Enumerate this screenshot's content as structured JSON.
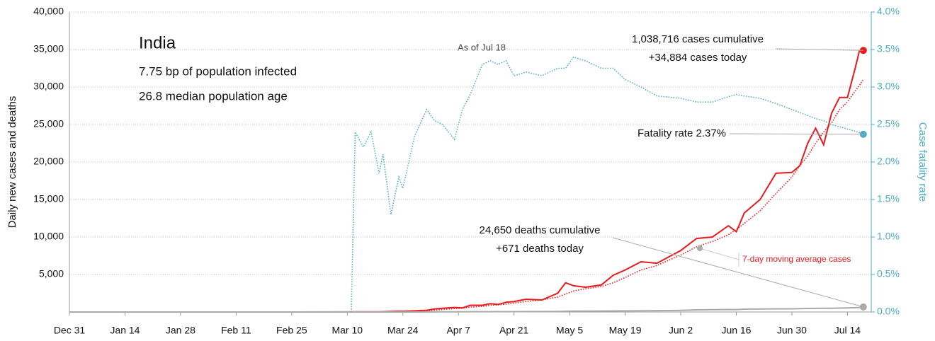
{
  "chart_data": {
    "type": "line",
    "title": "India",
    "subtitle": [
      "7.75 bp of population infected",
      "26.8 median population age"
    ],
    "y_label": "Daily new cases and deaths",
    "y2_label": "Case fatality rate",
    "annotations": {
      "as_of": "As of Jul 18",
      "cases_cumulative": "1,038,716 cases cumulative",
      "cases_today": "+34,884 cases today",
      "fatality": "Fatality rate 2.37%",
      "deaths_cumulative": "24,650 deaths cumulative",
      "deaths_today": "+671 deaths today"
    },
    "x": [
      "Dec 31",
      "Jan 14",
      "Jan 28",
      "Feb 11",
      "Feb 25",
      "Mar 10",
      "Mar 11",
      "Mar 12",
      "Mar 14",
      "Mar 16",
      "Mar 18",
      "Mar 19",
      "Mar 21",
      "Mar 23",
      "Mar 24",
      "Mar 27",
      "Mar 30",
      "Apr 1",
      "Apr 3",
      "Apr 6",
      "Apr 8",
      "Apr 10",
      "Apr 13",
      "Apr 15",
      "Apr 17",
      "Apr 19",
      "Apr 21",
      "Apr 24",
      "Apr 28",
      "May 2",
      "May 4",
      "May 6",
      "May 9",
      "May 13",
      "May 16",
      "May 19",
      "May 23",
      "May 27",
      "Jun 2",
      "Jun 6",
      "Jun 10",
      "Jun 14",
      "Jun 16",
      "Jun 18",
      "Jun 22",
      "Jun 26",
      "Jun 30",
      "Jul 2",
      "Jul 4",
      "Jul 6",
      "Jul 8",
      "Jul 10",
      "Jul 12",
      "Jul 14",
      "Jul 16",
      "Jul 17",
      "Jul 18"
    ],
    "xlim": [
      "Dec 31",
      "Jul 20"
    ],
    "xticks": [
      "Dec 31",
      "Jan 14",
      "Jan 28",
      "Feb 11",
      "Feb 25",
      "Mar 10",
      "Mar 24",
      "Apr 7",
      "Apr 21",
      "May 5",
      "May 19",
      "Jun 2",
      "Jun 16",
      "Jun 30",
      "Jul 14"
    ],
    "ylim": [
      0,
      40000
    ],
    "yticks": [
      {
        "value": 5000,
        "label": "5,000"
      },
      {
        "value": 10000,
        "label": "10,000"
      },
      {
        "value": 15000,
        "label": "15,000"
      },
      {
        "value": 20000,
        "label": "20,000"
      },
      {
        "value": 25000,
        "label": "25,000"
      },
      {
        "value": 30000,
        "label": "30,000"
      },
      {
        "value": 35000,
        "label": "35,000"
      },
      {
        "value": 40000,
        "label": "40,000"
      }
    ],
    "y2lim": [
      0,
      4
    ],
    "y2ticks": [
      {
        "value": 0,
        "label": "0.0%"
      },
      {
        "value": 0.5,
        "label": "0.5%"
      },
      {
        "value": 1,
        "label": "1.0%"
      },
      {
        "value": 1.5,
        "label": "1.5%"
      },
      {
        "value": 2,
        "label": "2.0%"
      },
      {
        "value": 2.5,
        "label": "2.5%"
      },
      {
        "value": 3,
        "label": "3.0%"
      },
      {
        "value": 3.5,
        "label": "3.5%"
      },
      {
        "value": 4,
        "label": "4.0%"
      }
    ],
    "grid": true,
    "series": [
      {
        "color": "#e8191c",
        "style": "solid",
        "values": [
          0,
          0,
          0,
          0,
          0,
          5,
          10,
          15,
          20,
          20,
          30,
          40,
          80,
          100,
          90,
          150,
          230,
          400,
          500,
          600,
          550,
          900,
          900,
          1100,
          1000,
          1300,
          1400,
          1700,
          1600,
          2500,
          3900,
          3500,
          3300,
          3600,
          4900,
          5600,
          6700,
          6500,
          8200,
          9800,
          10000,
          11500,
          10700,
          13200,
          15000,
          18500,
          18600,
          19500,
          22500,
          24500,
          22300,
          26500,
          28600,
          28600,
          32600,
          34800,
          34884
        ]
      },
      {
        "name": "7-day moving average cases",
        "color": "#e8191c",
        "style": "dotted",
        "values": [
          0,
          0,
          0,
          0,
          0,
          3,
          5,
          8,
          12,
          15,
          20,
          25,
          40,
          60,
          70,
          100,
          160,
          250,
          330,
          450,
          500,
          650,
          750,
          900,
          950,
          1050,
          1200,
          1400,
          1600,
          2000,
          2400,
          2800,
          3100,
          3400,
          3900,
          4600,
          5600,
          6200,
          7600,
          8700,
          9400,
          10300,
          11000,
          11800,
          13500,
          15800,
          18000,
          19500,
          20800,
          22500,
          24000,
          25200,
          27000,
          28000,
          29500,
          30200,
          31000
        ]
      },
      {
        "color": "#aaaaaa",
        "style": "solid",
        "values": [
          0,
          0,
          0,
          0,
          0,
          0,
          0,
          0,
          0,
          0,
          0,
          0,
          1,
          2,
          2,
          4,
          6,
          10,
          15,
          25,
          30,
          35,
          40,
          40,
          45,
          40,
          50,
          55,
          60,
          80,
          100,
          120,
          110,
          130,
          140,
          150,
          160,
          175,
          220,
          280,
          300,
          330,
          320,
          380,
          400,
          420,
          420,
          440,
          470,
          480,
          490,
          500,
          520,
          550,
          580,
          600,
          671
        ]
      },
      {
        "color": "#4bacc6",
        "style": "dotted",
        "axis": "y2",
        "values": [
          null,
          null,
          null,
          null,
          null,
          null,
          0,
          2.4,
          2.2,
          2.4,
          1.85,
          2.1,
          1.3,
          1.8,
          1.65,
          2.35,
          2.7,
          2.55,
          2.5,
          2.3,
          2.7,
          2.9,
          3.3,
          3.35,
          3.3,
          3.35,
          3.15,
          3.2,
          3.15,
          3.25,
          3.25,
          3.4,
          3.35,
          3.25,
          3.25,
          3.1,
          3.0,
          2.88,
          2.85,
          2.8,
          2.8,
          2.87,
          2.9,
          2.88,
          2.85,
          2.78,
          2.7,
          2.66,
          2.62,
          2.58,
          2.55,
          2.5,
          2.47,
          2.44,
          2.41,
          2.39,
          2.37
        ]
      }
    ]
  }
}
